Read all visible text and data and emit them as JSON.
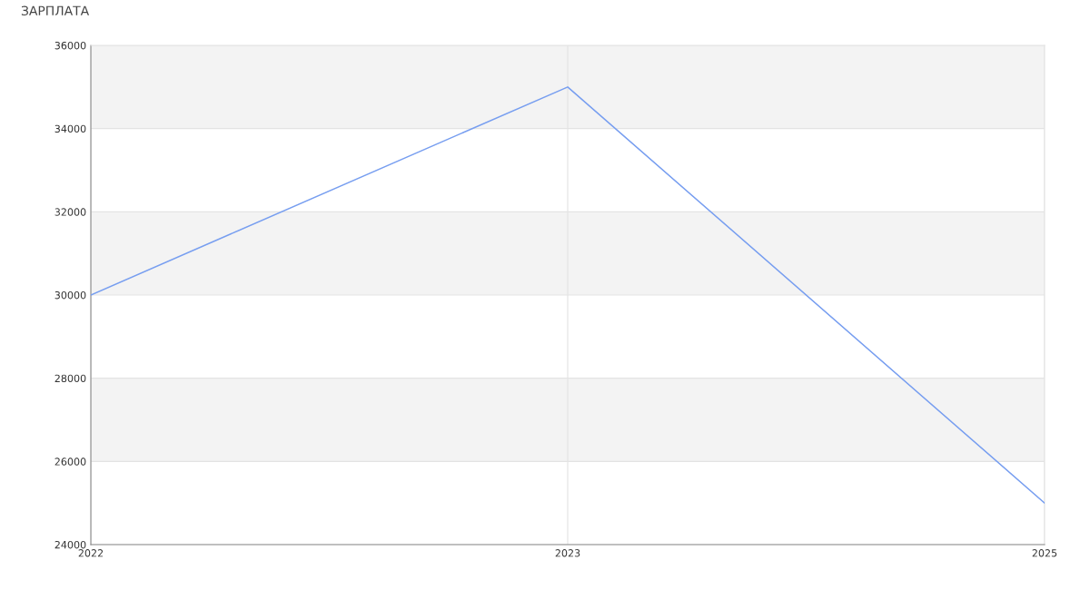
{
  "chart_data": {
    "type": "line",
    "title": "ЗАРПЛАТА",
    "categories": [
      "2022",
      "2023",
      "2025"
    ],
    "series": [
      {
        "color": "#779ef0",
        "values": [
          30000,
          35000,
          25000
        ]
      }
    ],
    "ylim": [
      24000,
      36000
    ],
    "yticks": [
      24000,
      26000,
      28000,
      30000,
      32000,
      34000,
      36000
    ],
    "grid": true,
    "marker": "none",
    "line_style": "solid",
    "bands": [
      {
        "axis": "y",
        "from": 26000,
        "to": 28000,
        "color": "#f3f3f3"
      },
      {
        "axis": "y",
        "from": 30000,
        "to": 32000,
        "color": "#f3f3f3"
      },
      {
        "axis": "y",
        "from": 34000,
        "to": 36000,
        "color": "#f3f3f3"
      }
    ]
  }
}
